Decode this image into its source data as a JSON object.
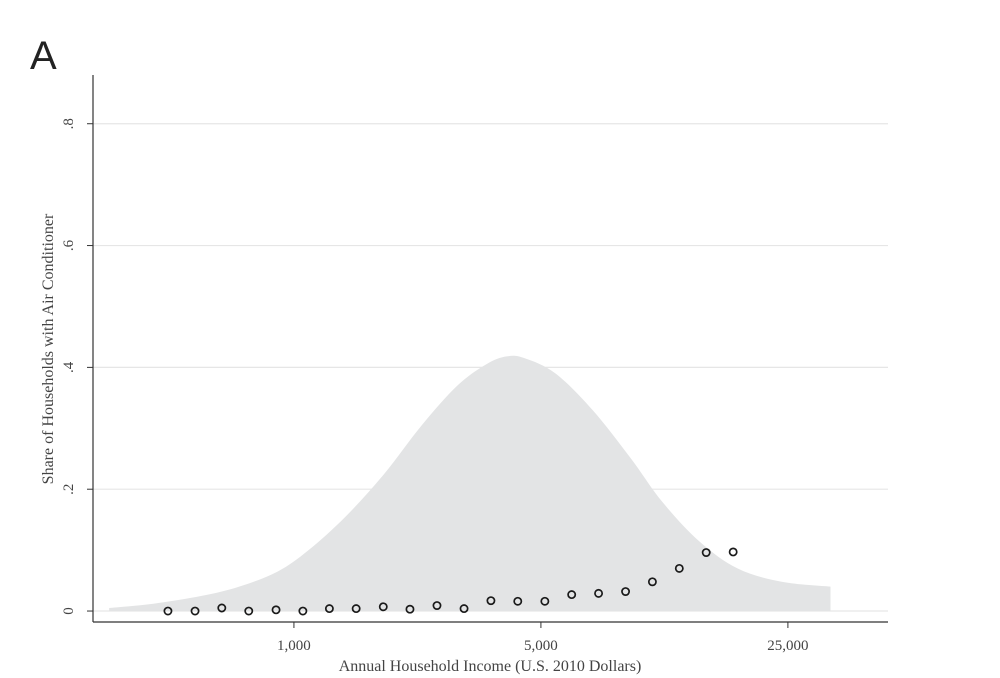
{
  "panel_label": "A",
  "chart_data": {
    "type": "scatter",
    "title": "",
    "xlabel": "Annual Household Income (U.S. 2010 Dollars)",
    "ylabel": "Share of Households with Air Conditioner",
    "x_scale": "log",
    "xlim": [
      270,
      48000
    ],
    "ylim": [
      -0.018,
      0.88
    ],
    "grid": true,
    "x_ticks": [
      {
        "value": 1000,
        "label": "1,000"
      },
      {
        "value": 5000,
        "label": "5,000"
      },
      {
        "value": 25000,
        "label": "25,000"
      }
    ],
    "y_ticks": [
      {
        "value": 0,
        "label": "0"
      },
      {
        "value": 0.2,
        "label": ".2"
      },
      {
        "value": 0.4,
        "label": ".4"
      },
      {
        "value": 0.6,
        "label": ".6"
      },
      {
        "value": 0.8,
        "label": ".8"
      }
    ],
    "series": [
      {
        "kind": "points",
        "marker": "hollow-circle",
        "color": "#1a1a1a",
        "points": [
          {
            "x": 440,
            "y": 0.0
          },
          {
            "x": 525,
            "y": 0.0
          },
          {
            "x": 625,
            "y": 0.005
          },
          {
            "x": 745,
            "y": 0.0
          },
          {
            "x": 890,
            "y": 0.002
          },
          {
            "x": 1060,
            "y": 0.0
          },
          {
            "x": 1260,
            "y": 0.004
          },
          {
            "x": 1500,
            "y": 0.004
          },
          {
            "x": 1790,
            "y": 0.007
          },
          {
            "x": 2130,
            "y": 0.003
          },
          {
            "x": 2540,
            "y": 0.009
          },
          {
            "x": 3030,
            "y": 0.004
          },
          {
            "x": 3610,
            "y": 0.017
          },
          {
            "x": 4300,
            "y": 0.016
          },
          {
            "x": 5130,
            "y": 0.016
          },
          {
            "x": 6110,
            "y": 0.027
          },
          {
            "x": 7280,
            "y": 0.029
          },
          {
            "x": 8680,
            "y": 0.032
          },
          {
            "x": 10340,
            "y": 0.048
          },
          {
            "x": 12320,
            "y": 0.07
          },
          {
            "x": 14680,
            "y": 0.096
          },
          {
            "x": 17500,
            "y": 0.097
          }
        ]
      },
      {
        "kind": "density-area",
        "color": "#e3e4e5",
        "points": [
          {
            "x": 300,
            "y": 0.005
          },
          {
            "x": 400,
            "y": 0.012
          },
          {
            "x": 550,
            "y": 0.025
          },
          {
            "x": 700,
            "y": 0.04
          },
          {
            "x": 900,
            "y": 0.065
          },
          {
            "x": 1100,
            "y": 0.1
          },
          {
            "x": 1400,
            "y": 0.155
          },
          {
            "x": 1800,
            "y": 0.225
          },
          {
            "x": 2300,
            "y": 0.305
          },
          {
            "x": 2900,
            "y": 0.37
          },
          {
            "x": 3500,
            "y": 0.405
          },
          {
            "x": 4000,
            "y": 0.418
          },
          {
            "x": 4500,
            "y": 0.415
          },
          {
            "x": 5500,
            "y": 0.39
          },
          {
            "x": 7000,
            "y": 0.33
          },
          {
            "x": 9000,
            "y": 0.25
          },
          {
            "x": 11000,
            "y": 0.18
          },
          {
            "x": 14000,
            "y": 0.115
          },
          {
            "x": 18000,
            "y": 0.07
          },
          {
            "x": 24000,
            "y": 0.048
          },
          {
            "x": 33000,
            "y": 0.04
          }
        ]
      }
    ]
  }
}
